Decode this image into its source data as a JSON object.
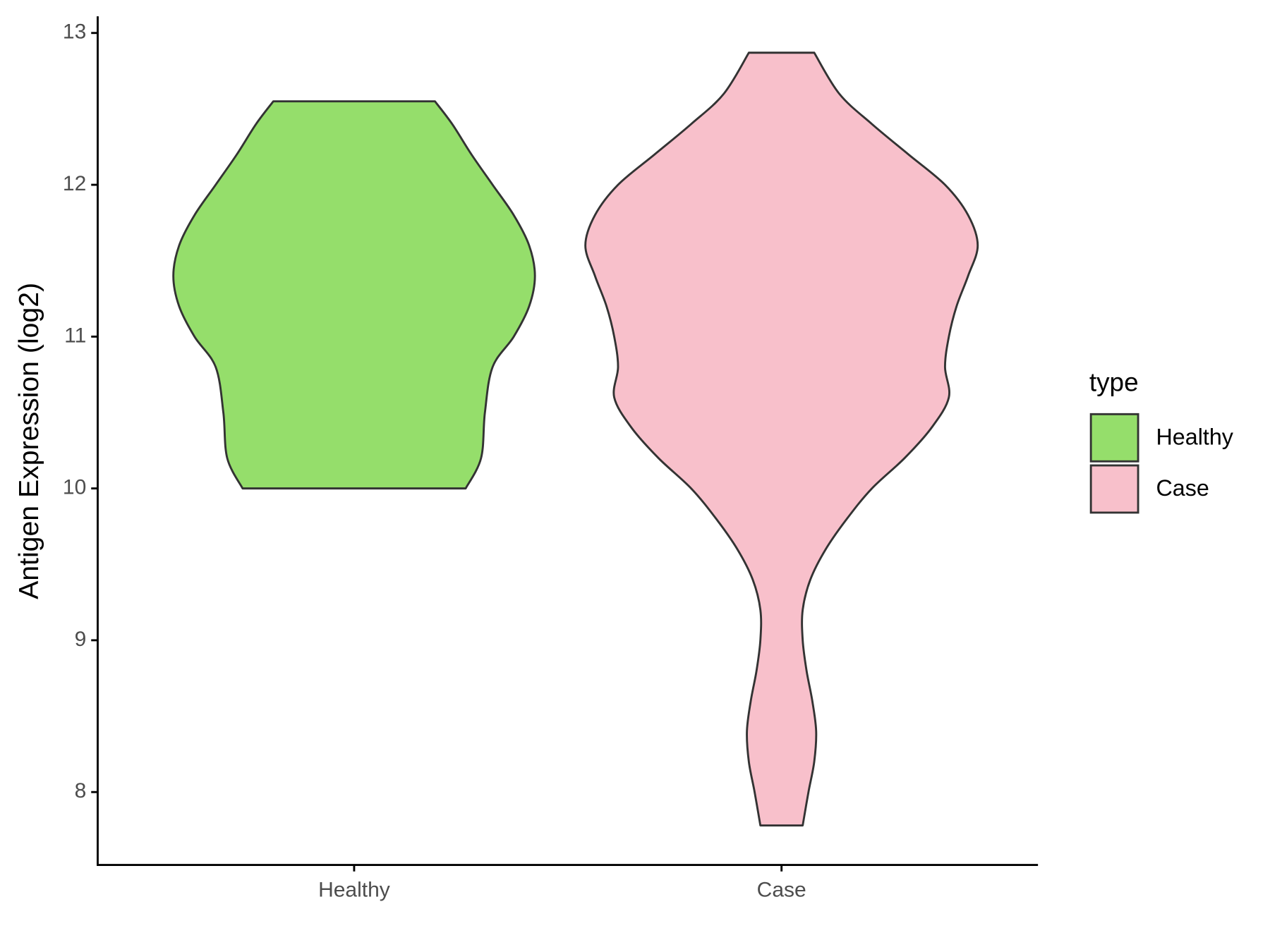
{
  "chart_data": {
    "type": "violin",
    "y_label": "Antigen Expression (log2)",
    "categories": [
      "Healthy",
      "Case"
    ],
    "legend_title": "type",
    "legend": "right",
    "ylim": [
      7.52,
      13.11
    ],
    "yticks": [
      8,
      9,
      10,
      11,
      12,
      13
    ],
    "series": [
      {
        "name": "Healthy",
        "color": "#95DE6B",
        "y": [
          10.0,
          10.2,
          10.5,
          10.8,
          11.0,
          11.2,
          11.4,
          11.6,
          11.8,
          12.0,
          12.2,
          12.4,
          12.55
        ],
        "width": [
          0.58,
          0.66,
          0.68,
          0.72,
          0.83,
          0.91,
          0.94,
          0.91,
          0.83,
          0.72,
          0.61,
          0.51,
          0.42
        ]
      },
      {
        "name": "Case",
        "color": "#F8C0CB",
        "y": [
          7.78,
          8.0,
          8.2,
          8.4,
          8.6,
          8.8,
          9.0,
          9.2,
          9.4,
          9.6,
          9.8,
          10.0,
          10.2,
          10.4,
          10.6,
          10.8,
          11.0,
          11.2,
          11.4,
          11.6,
          11.8,
          12.0,
          12.2,
          12.4,
          12.6,
          12.87
        ],
        "width": [
          0.11,
          0.14,
          0.17,
          0.18,
          0.16,
          0.13,
          0.11,
          0.11,
          0.15,
          0.23,
          0.34,
          0.47,
          0.64,
          0.78,
          0.87,
          0.85,
          0.87,
          0.91,
          0.97,
          1.02,
          0.97,
          0.85,
          0.66,
          0.47,
          0.3,
          0.17
        ]
      }
    ]
  }
}
